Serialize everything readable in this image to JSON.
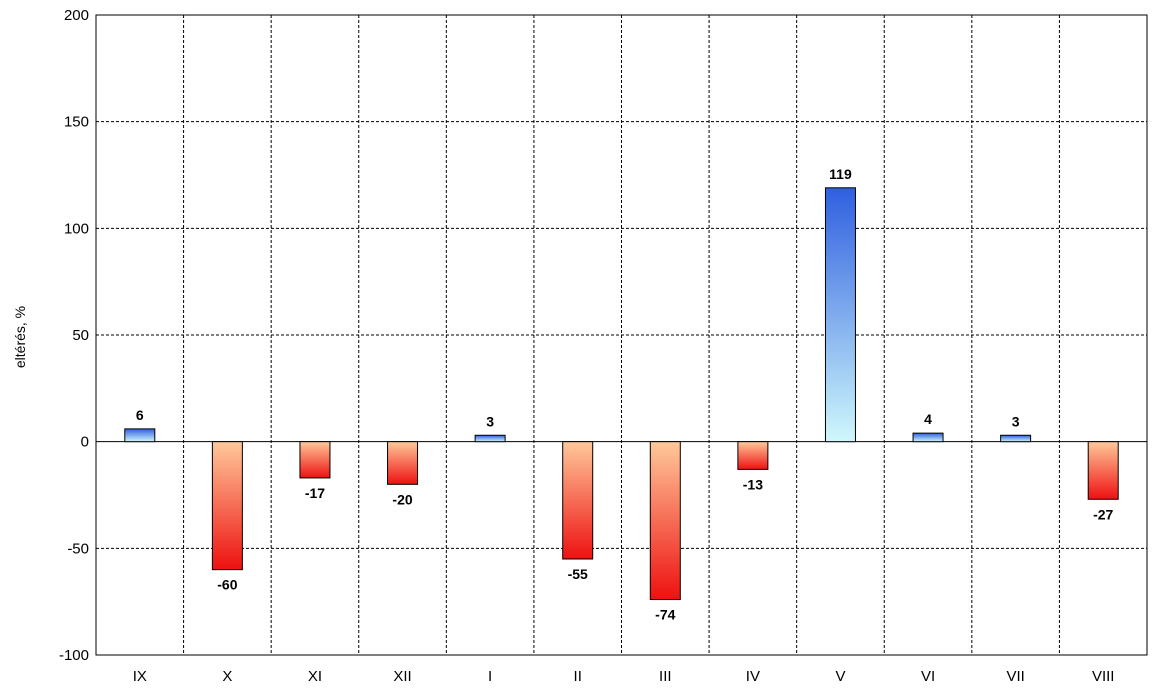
{
  "chart_data": {
    "type": "bar",
    "title": "",
    "xlabel": "",
    "ylabel": "eltérés, %",
    "categories": [
      "IX",
      "X",
      "XI",
      "XII",
      "I",
      "II",
      "III",
      "IV",
      "V",
      "VI",
      "VII",
      "VIII"
    ],
    "values": [
      6,
      -60,
      -17,
      -20,
      3,
      -55,
      -74,
      -13,
      119,
      4,
      3,
      -27
    ],
    "data_labels": [
      "6",
      "-60",
      "-17",
      "-20",
      "3",
      "-55",
      "-74",
      "-13",
      "119",
      "4",
      "3",
      "-27"
    ],
    "ylim": [
      -100,
      200
    ],
    "yticks": [
      "200",
      "150",
      "100",
      "50",
      "0",
      "-50",
      "-100"
    ],
    "grid": true,
    "legend": "none",
    "colors": {
      "positive_top": "#2f5fe0",
      "positive_bottom": "#cff8fb",
      "negative_top": "#ffc89a",
      "negative_bottom": "#ee1111",
      "grid": "#000000",
      "frame": "#000000"
    }
  }
}
